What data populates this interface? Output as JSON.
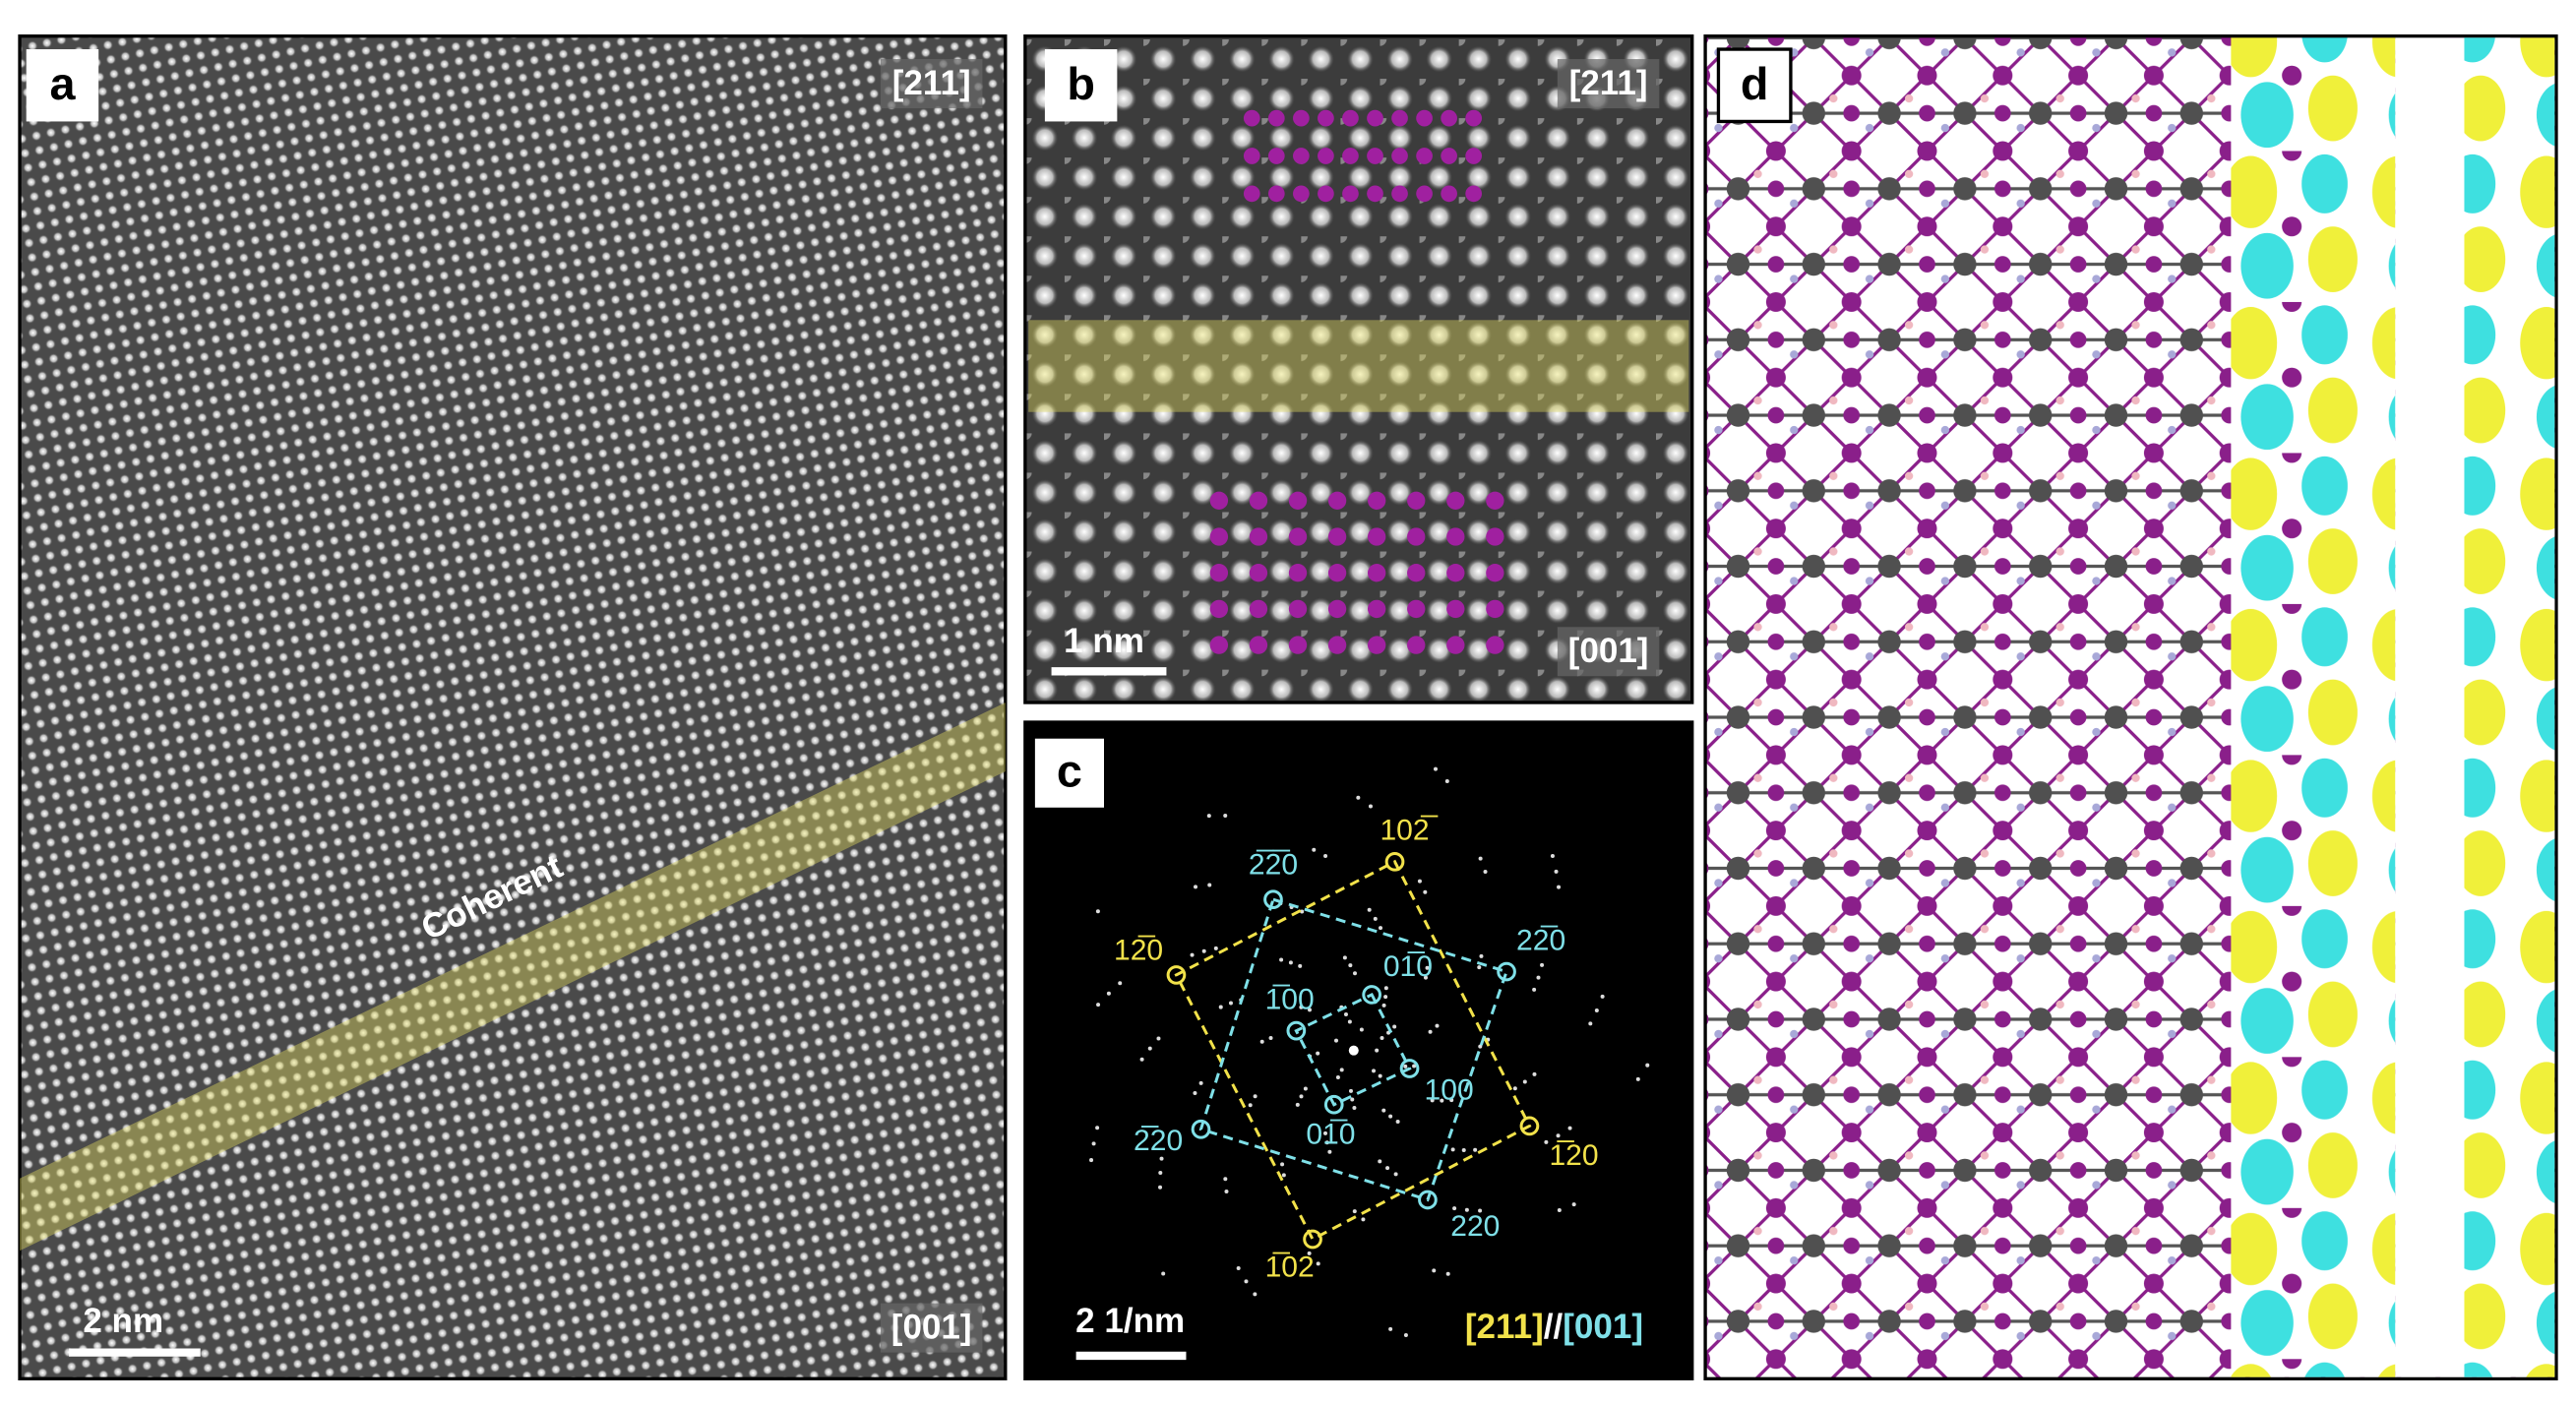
{
  "panels": {
    "a": {
      "label": "a",
      "zone_top": "[211]",
      "zone_bottom": "[001]",
      "annotation": "Coherent",
      "scale_bar": "2 nm"
    },
    "b": {
      "label": "b",
      "zone_top": "[211]",
      "zone_bottom": "[001]",
      "scale_bar": "1 nm"
    },
    "c": {
      "label": "c",
      "scale_bar": "2 1/nm",
      "spots": [
        {
          "label": "102̅",
          "color": "#f2e24a"
        },
        {
          "label": "2̅2̅0",
          "color": "#7fe0e8"
        },
        {
          "label": "12̅0",
          "color": "#f2e24a"
        },
        {
          "label": "22̅0",
          "color": "#7fe0e8"
        },
        {
          "label": "01̅0",
          "color": "#7fe0e8"
        },
        {
          "label": "1̅00",
          "color": "#7fe0e8"
        },
        {
          "label": "100",
          "color": "#7fe0e8"
        },
        {
          "label": "01̅0",
          "color": "#7fe0e8"
        },
        {
          "label": "2̅20",
          "color": "#7fe0e8"
        },
        {
          "label": "1̅20",
          "color": "#f2e24a"
        },
        {
          "label": "220",
          "color": "#7fe0e8"
        },
        {
          "label": "1̅02",
          "color": "#f2e24a"
        }
      ],
      "zone_yellow": "[211]",
      "separator": "//",
      "zone_cyan": "[001]"
    },
    "d": {
      "label": "d"
    }
  }
}
